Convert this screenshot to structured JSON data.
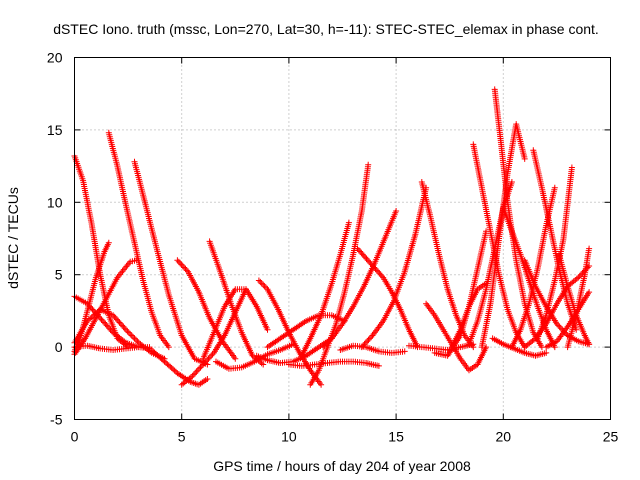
{
  "chart_data": {
    "type": "scatter",
    "title": "dSTEC Iono. truth (mssc, Lon=270, Lat=30, h=-11): STEC-STEC_elemax in phase cont.",
    "xlabel": "GPS time / hours of day 204 of year 2008",
    "ylabel": "dSTEC  / TECUs",
    "xlim": [
      0,
      25
    ],
    "ylim": [
      -5,
      20
    ],
    "xticks": [
      0,
      5,
      10,
      15,
      20,
      25
    ],
    "yticks": [
      -5,
      0,
      5,
      10,
      15,
      20
    ],
    "grid": true,
    "legend": "none",
    "marker": "+",
    "color": "#ff0000",
    "series": [
      {
        "x": [
          0.0,
          0.4,
          0.8,
          1.2,
          1.6,
          2.0,
          2.5
        ],
        "y": [
          13.2,
          11.5,
          8.5,
          5.0,
          2.2,
          0.6,
          0.0
        ]
      },
      {
        "x": [
          0.0,
          0.3,
          0.6,
          1.0,
          1.4,
          1.6
        ],
        "y": [
          -0.3,
          0.8,
          2.5,
          4.8,
          6.6,
          7.2
        ]
      },
      {
        "x": [
          0.0,
          0.6,
          1.2,
          1.8,
          2.4,
          3.0,
          3.5
        ],
        "y": [
          3.5,
          3.0,
          2.0,
          1.0,
          0.3,
          0.0,
          -0.1
        ]
      },
      {
        "x": [
          0.0,
          0.5,
          1.0,
          1.5,
          2.0,
          2.6,
          2.9
        ],
        "y": [
          -0.5,
          0.6,
          2.0,
          3.4,
          4.8,
          5.9,
          6.0
        ]
      },
      {
        "x": [
          0.0,
          0.6,
          1.2,
          1.8,
          2.4,
          3.0,
          3.6,
          4.2
        ],
        "y": [
          0.3,
          1.8,
          2.6,
          2.2,
          1.2,
          0.3,
          -0.4,
          -0.8
        ]
      },
      {
        "x": [
          1.6,
          2.0,
          2.4,
          2.8,
          3.2,
          3.6,
          4.0,
          4.4
        ],
        "y": [
          14.8,
          12.5,
          9.8,
          7.2,
          4.6,
          2.4,
          0.8,
          0.0
        ]
      },
      {
        "x": [
          2.8,
          3.2,
          3.8,
          4.4,
          5.0,
          5.6,
          6.2
        ],
        "y": [
          12.8,
          10.5,
          7.0,
          3.6,
          0.8,
          -0.8,
          -1.2
        ]
      },
      {
        "x": [
          0.0,
          0.6,
          1.2,
          1.8,
          2.4,
          3.0,
          3.5
        ],
        "y": [
          0.0,
          0.1,
          -0.1,
          -0.2,
          -0.1,
          0.0,
          0.0
        ]
      },
      {
        "x": [
          3.6,
          4.2,
          4.8,
          5.4,
          5.8,
          6.2
        ],
        "y": [
          -0.2,
          -1.0,
          -1.8,
          -2.4,
          -2.6,
          -2.2
        ]
      },
      {
        "x": [
          4.8,
          5.3,
          5.8,
          6.3,
          6.9,
          7.5
        ],
        "y": [
          6.0,
          5.2,
          3.8,
          2.0,
          0.4,
          -0.8
        ]
      },
      {
        "x": [
          5.0,
          5.5,
          6.0,
          6.5,
          7.0,
          7.5,
          8.0
        ],
        "y": [
          -2.6,
          -2.0,
          -1.2,
          -0.4,
          0.8,
          2.4,
          4.0
        ]
      },
      {
        "x": [
          6.3,
          6.8,
          7.3,
          7.8,
          8.3,
          8.8
        ],
        "y": [
          7.3,
          5.2,
          3.0,
          1.0,
          -0.6,
          -1.2
        ]
      },
      {
        "x": [
          6.0,
          6.5,
          7.0,
          7.5,
          8.0,
          8.5,
          9.0
        ],
        "y": [
          -0.8,
          1.0,
          2.8,
          4.0,
          4.0,
          2.8,
          1.2
        ]
      },
      {
        "x": [
          6.6,
          7.2,
          7.8,
          8.4,
          9.0,
          9.6,
          10.2
        ],
        "y": [
          -1.0,
          -1.5,
          -1.4,
          -1.0,
          -0.5,
          -0.2,
          0.2
        ]
      },
      {
        "x": [
          8.6,
          9.0,
          9.5,
          10.0,
          10.5,
          11.0,
          11.5
        ],
        "y": [
          4.6,
          4.0,
          2.6,
          1.0,
          -0.4,
          -1.6,
          -2.6
        ]
      },
      {
        "x": [
          8.5,
          9.0,
          9.6,
          10.2,
          10.8,
          11.4,
          12.0
        ],
        "y": [
          -0.6,
          -0.9,
          -1.1,
          -1.0,
          -0.6,
          0.0,
          0.6
        ]
      },
      {
        "x": [
          9.0,
          9.6,
          10.2,
          10.8,
          11.4,
          12.0,
          12.6
        ],
        "y": [
          0.0,
          0.6,
          1.2,
          1.8,
          2.2,
          2.2,
          1.8
        ]
      },
      {
        "x": [
          10.0,
          10.6,
          11.2,
          11.8,
          12.4,
          13.0,
          13.6,
          14.2
        ],
        "y": [
          -1.2,
          -1.3,
          -1.2,
          -1.1,
          -1.0,
          -1.0,
          -1.1,
          -1.3
        ]
      },
      {
        "x": [
          11.0,
          11.4,
          11.8,
          12.2,
          12.6,
          13.0,
          13.4,
          13.7
        ],
        "y": [
          -2.6,
          -1.6,
          0.0,
          1.6,
          3.8,
          6.4,
          9.4,
          12.6
        ]
      },
      {
        "x": [
          10.6,
          11.0,
          11.5,
          12.0,
          12.4,
          12.8
        ],
        "y": [
          -0.6,
          0.6,
          2.2,
          4.4,
          6.4,
          8.6
        ]
      },
      {
        "x": [
          11.6,
          12.0,
          12.5,
          13.0,
          13.5,
          14.0,
          14.5,
          15.0
        ],
        "y": [
          0.0,
          0.6,
          1.6,
          2.8,
          4.2,
          5.8,
          7.6,
          9.4
        ]
      },
      {
        "x": [
          13.4,
          13.9,
          14.4,
          14.9,
          15.4,
          15.9,
          16.4
        ],
        "y": [
          0.0,
          0.8,
          1.8,
          3.2,
          5.2,
          7.8,
          11.0
        ]
      },
      {
        "x": [
          12.4,
          13.0,
          13.6,
          14.2,
          14.8,
          15.4
        ],
        "y": [
          -0.2,
          0.1,
          0.0,
          -0.3,
          -0.4,
          -0.3
        ]
      },
      {
        "x": [
          13.2,
          13.8,
          14.4,
          14.8,
          15.2,
          15.6,
          16.0
        ],
        "y": [
          6.8,
          5.8,
          4.8,
          3.8,
          2.6,
          1.2,
          0.0
        ]
      },
      {
        "x": [
          16.2,
          16.6,
          17.0,
          17.4,
          17.8,
          18.2,
          18.6
        ],
        "y": [
          11.4,
          9.0,
          6.4,
          4.0,
          2.2,
          0.8,
          0.0
        ]
      },
      {
        "x": [
          16.4,
          16.8,
          17.2,
          17.6,
          18.0,
          18.4,
          18.8,
          19.2
        ],
        "y": [
          3.0,
          2.2,
          1.2,
          0.2,
          -0.8,
          -1.6,
          -1.2,
          0.0
        ]
      },
      {
        "x": [
          15.6,
          16.2,
          16.8,
          17.4,
          18.0,
          18.6
        ],
        "y": [
          0.1,
          0.0,
          -0.1,
          -0.2,
          0.0,
          0.2
        ]
      },
      {
        "x": [
          16.8,
          17.4,
          18.0,
          18.4,
          18.8,
          19.2
        ],
        "y": [
          -0.4,
          -0.6,
          0.8,
          2.8,
          5.4,
          8.0
        ]
      },
      {
        "x": [
          17.6,
          18.0,
          18.4,
          18.8,
          19.2
        ],
        "y": [
          0.0,
          1.2,
          2.8,
          4.0,
          4.4
        ]
      },
      {
        "x": [
          18.6,
          19.0,
          19.4,
          19.8,
          20.2,
          20.6,
          21.0
        ],
        "y": [
          14.0,
          11.0,
          8.0,
          5.0,
          2.6,
          1.0,
          0.0
        ]
      },
      {
        "x": [
          19.6,
          19.9,
          20.2,
          20.6,
          21.0,
          21.4,
          21.8
        ],
        "y": [
          17.8,
          14.0,
          10.0,
          6.0,
          3.0,
          1.0,
          0.0
        ]
      },
      {
        "x": [
          19.0,
          19.4,
          19.8,
          20.2,
          20.6,
          21.0
        ],
        "y": [
          0.0,
          3.0,
          7.5,
          12.0,
          15.4,
          13.0
        ]
      },
      {
        "x": [
          18.4,
          18.8,
          19.2,
          19.6,
          20.0,
          20.4
        ],
        "y": [
          0.2,
          1.8,
          4.0,
          6.8,
          9.6,
          11.4
        ]
      },
      {
        "x": [
          20.0,
          20.4,
          20.8,
          21.2,
          21.6,
          22.0,
          22.4
        ],
        "y": [
          9.6,
          8.0,
          6.4,
          4.6,
          2.8,
          1.2,
          0.0
        ]
      },
      {
        "x": [
          20.4,
          20.8,
          21.2,
          21.6,
          22.0,
          22.4
        ],
        "y": [
          0.0,
          1.2,
          3.0,
          5.4,
          8.4,
          11.0
        ]
      },
      {
        "x": [
          21.4,
          21.8,
          22.2,
          22.6,
          23.0,
          23.4
        ],
        "y": [
          13.6,
          11.0,
          8.2,
          5.4,
          3.0,
          1.2
        ]
      },
      {
        "x": [
          21.6,
          22.0,
          22.4,
          22.8,
          23.2
        ],
        "y": [
          0.6,
          2.2,
          4.6,
          7.4,
          12.4
        ]
      },
      {
        "x": [
          21.0,
          21.5,
          22.0,
          22.5,
          23.0,
          23.5,
          24.0
        ],
        "y": [
          0.0,
          0.6,
          1.6,
          3.0,
          4.2,
          4.8,
          5.6
        ]
      },
      {
        "x": [
          22.6,
          23.0,
          23.4,
          23.8,
          24.0
        ],
        "y": [
          6.4,
          4.2,
          2.2,
          0.8,
          0.2
        ]
      },
      {
        "x": [
          23.0,
          23.4,
          23.8,
          24.0
        ],
        "y": [
          0.0,
          2.2,
          5.0,
          6.8
        ]
      },
      {
        "x": [
          21.0,
          21.5,
          22.0,
          22.5,
          23.0,
          23.5,
          24.0
        ],
        "y": [
          6.0,
          4.2,
          2.8,
          1.6,
          0.8,
          0.4,
          0.2
        ]
      },
      {
        "x": [
          22.0,
          22.5,
          23.0,
          23.5,
          24.0
        ],
        "y": [
          0.0,
          0.4,
          1.4,
          2.6,
          3.8
        ]
      },
      {
        "x": [
          19.5,
          20.0,
          20.5,
          21.0,
          21.5,
          22.0
        ],
        "y": [
          0.6,
          0.2,
          -0.1,
          -0.4,
          -0.6,
          -0.4
        ]
      }
    ]
  }
}
